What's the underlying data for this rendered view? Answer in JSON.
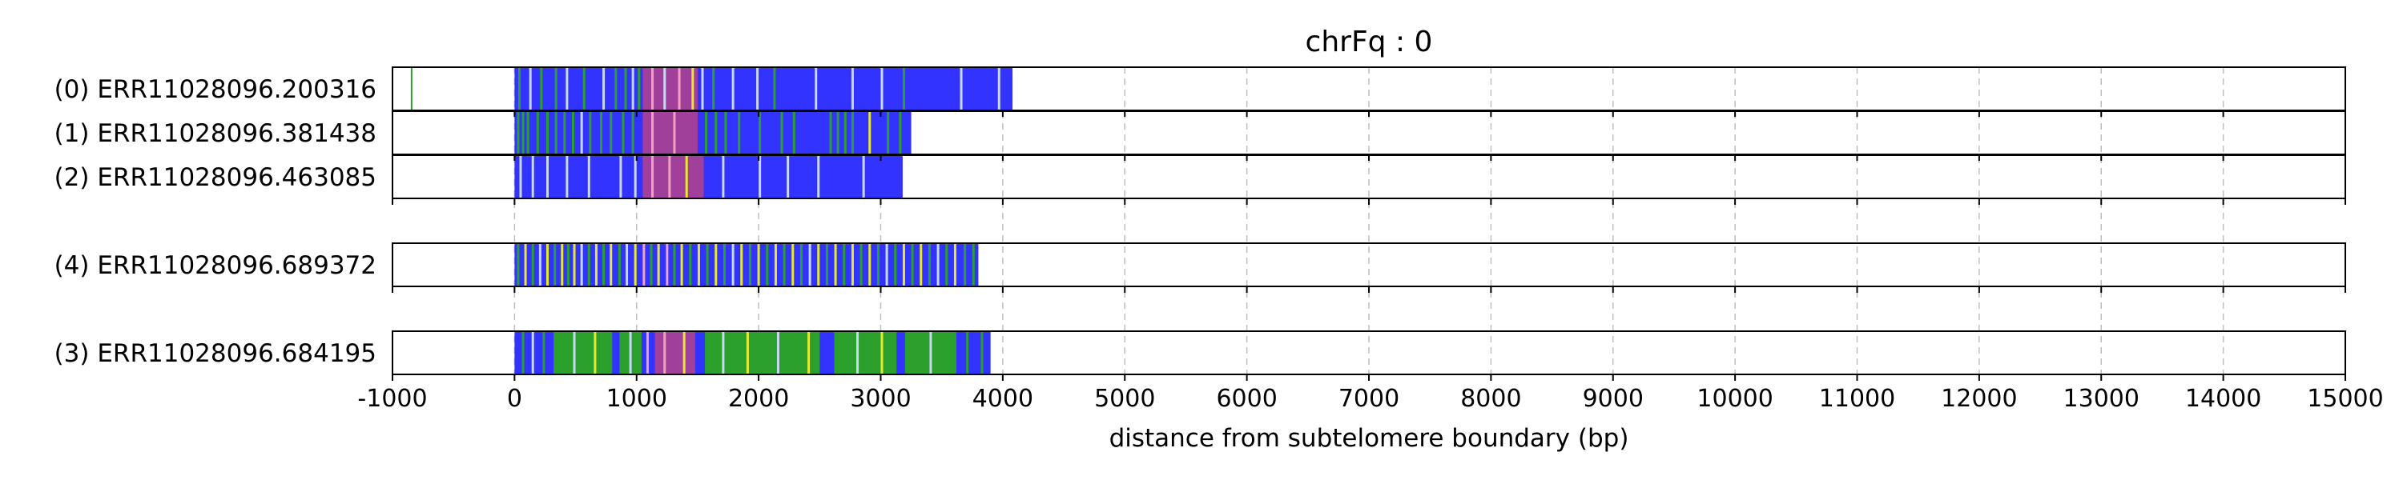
{
  "chart_data": {
    "type": "bar",
    "title": "chrFq : 0",
    "xlabel": "distance from subtelomere boundary (bp)",
    "ylabel": "",
    "xlim": [
      -1000,
      15000
    ],
    "x_ticks": [
      -1000,
      0,
      1000,
      2000,
      3000,
      4000,
      5000,
      6000,
      7000,
      8000,
      9000,
      10000,
      11000,
      12000,
      13000,
      14000,
      15000
    ],
    "x_tick_labels": [
      "-1000",
      "0",
      "1000",
      "2000",
      "3000",
      "4000",
      "5000",
      "6000",
      "7000",
      "8000",
      "9000",
      "10000",
      "11000",
      "12000",
      "13000",
      "14000",
      "15000"
    ],
    "grid": "vertical dashed at x ticks",
    "legend": "none",
    "colors": {
      "blue": "#3333ff",
      "green": "#2ca02c",
      "magenta": "#a0409a",
      "yellow": "#e8e830",
      "pink": "#f0a0c0",
      "light": "#c8d8f0"
    },
    "tracks": [
      {
        "label": "(0) ERR11028096.200316",
        "start": 0,
        "end": 4080,
        "extra_marks": [
          {
            "x": -850,
            "color": "green"
          }
        ],
        "dominant": "blue",
        "segments": [
          {
            "from": 1050,
            "to": 1500,
            "color": "magenta"
          }
        ],
        "stripes": [
          {
            "x": 30,
            "color": "green"
          },
          {
            "x": 120,
            "color": "light"
          },
          {
            "x": 210,
            "color": "green"
          },
          {
            "x": 330,
            "color": "green"
          },
          {
            "x": 420,
            "color": "light"
          },
          {
            "x": 560,
            "color": "green"
          },
          {
            "x": 720,
            "color": "light"
          },
          {
            "x": 820,
            "color": "green"
          },
          {
            "x": 900,
            "color": "green"
          },
          {
            "x": 960,
            "color": "light"
          },
          {
            "x": 1010,
            "color": "green"
          },
          {
            "x": 1120,
            "color": "pink"
          },
          {
            "x": 1220,
            "color": "light"
          },
          {
            "x": 1340,
            "color": "pink"
          },
          {
            "x": 1450,
            "color": "yellow"
          },
          {
            "x": 1530,
            "color": "light"
          },
          {
            "x": 1620,
            "color": "green"
          },
          {
            "x": 1780,
            "color": "light"
          },
          {
            "x": 1980,
            "color": "light"
          },
          {
            "x": 2120,
            "color": "green"
          },
          {
            "x": 2460,
            "color": "light"
          },
          {
            "x": 2760,
            "color": "light"
          },
          {
            "x": 3000,
            "color": "light"
          },
          {
            "x": 3180,
            "color": "green"
          },
          {
            "x": 3650,
            "color": "light"
          },
          {
            "x": 3960,
            "color": "light"
          }
        ]
      },
      {
        "label": "(1) ERR11028096.381438",
        "start": 0,
        "end": 3250,
        "extra_marks": [],
        "dominant": "blue",
        "segments": [
          {
            "from": 1050,
            "to": 1500,
            "color": "magenta"
          }
        ],
        "stripes": [
          {
            "x": 20,
            "color": "green"
          },
          {
            "x": 60,
            "color": "green"
          },
          {
            "x": 100,
            "color": "green"
          },
          {
            "x": 180,
            "color": "green"
          },
          {
            "x": 260,
            "color": "green"
          },
          {
            "x": 330,
            "color": "green"
          },
          {
            "x": 400,
            "color": "green"
          },
          {
            "x": 470,
            "color": "green"
          },
          {
            "x": 540,
            "color": "light"
          },
          {
            "x": 610,
            "color": "green"
          },
          {
            "x": 700,
            "color": "green"
          },
          {
            "x": 780,
            "color": "green"
          },
          {
            "x": 880,
            "color": "green"
          },
          {
            "x": 960,
            "color": "green"
          },
          {
            "x": 1120,
            "color": "pink"
          },
          {
            "x": 1300,
            "color": "pink"
          },
          {
            "x": 1560,
            "color": "green"
          },
          {
            "x": 1640,
            "color": "green"
          },
          {
            "x": 1720,
            "color": "green"
          },
          {
            "x": 1830,
            "color": "green"
          },
          {
            "x": 2000,
            "color": "green"
          },
          {
            "x": 2180,
            "color": "green"
          },
          {
            "x": 2280,
            "color": "green"
          },
          {
            "x": 2580,
            "color": "green"
          },
          {
            "x": 2640,
            "color": "green"
          },
          {
            "x": 2700,
            "color": "green"
          },
          {
            "x": 2760,
            "color": "green"
          },
          {
            "x": 2900,
            "color": "yellow"
          },
          {
            "x": 3050,
            "color": "green"
          },
          {
            "x": 3150,
            "color": "green"
          }
        ]
      },
      {
        "label": "(2) ERR11028096.463085",
        "start": 0,
        "end": 3180,
        "extra_marks": [],
        "dominant": "blue",
        "segments": [
          {
            "from": 1050,
            "to": 1550,
            "color": "magenta"
          }
        ],
        "stripes": [
          {
            "x": 40,
            "color": "light"
          },
          {
            "x": 140,
            "color": "light"
          },
          {
            "x": 260,
            "color": "light"
          },
          {
            "x": 420,
            "color": "light"
          },
          {
            "x": 600,
            "color": "light"
          },
          {
            "x": 860,
            "color": "light"
          },
          {
            "x": 980,
            "color": "light"
          },
          {
            "x": 1120,
            "color": "pink"
          },
          {
            "x": 1260,
            "color": "pink"
          },
          {
            "x": 1400,
            "color": "yellow"
          },
          {
            "x": 1700,
            "color": "light"
          },
          {
            "x": 2000,
            "color": "light"
          },
          {
            "x": 2230,
            "color": "light"
          },
          {
            "x": 2480,
            "color": "light"
          },
          {
            "x": 2850,
            "color": "light"
          }
        ]
      },
      {
        "label": "(4) ERR11028096.689372",
        "start": 0,
        "end": 3800,
        "extra_marks": [],
        "dominant": "blue",
        "segments": [],
        "stripes": [
          {
            "x": 20,
            "color": "green"
          },
          {
            "x": 80,
            "color": "yellow"
          },
          {
            "x": 140,
            "color": "green"
          },
          {
            "x": 200,
            "color": "light"
          },
          {
            "x": 260,
            "color": "yellow"
          },
          {
            "x": 320,
            "color": "green"
          },
          {
            "x": 380,
            "color": "yellow"
          },
          {
            "x": 430,
            "color": "green"
          },
          {
            "x": 480,
            "color": "yellow"
          },
          {
            "x": 540,
            "color": "light"
          },
          {
            "x": 600,
            "color": "green"
          },
          {
            "x": 660,
            "color": "yellow"
          },
          {
            "x": 720,
            "color": "green"
          },
          {
            "x": 780,
            "color": "yellow"
          },
          {
            "x": 850,
            "color": "green"
          },
          {
            "x": 910,
            "color": "light"
          },
          {
            "x": 980,
            "color": "yellow"
          },
          {
            "x": 1050,
            "color": "pink"
          },
          {
            "x": 1110,
            "color": "green"
          },
          {
            "x": 1170,
            "color": "yellow"
          },
          {
            "x": 1240,
            "color": "pink"
          },
          {
            "x": 1300,
            "color": "green"
          },
          {
            "x": 1360,
            "color": "yellow"
          },
          {
            "x": 1430,
            "color": "green"
          },
          {
            "x": 1500,
            "color": "yellow"
          },
          {
            "x": 1570,
            "color": "green"
          },
          {
            "x": 1640,
            "color": "yellow"
          },
          {
            "x": 1710,
            "color": "green"
          },
          {
            "x": 1780,
            "color": "light"
          },
          {
            "x": 1850,
            "color": "yellow"
          },
          {
            "x": 1920,
            "color": "green"
          },
          {
            "x": 1990,
            "color": "yellow"
          },
          {
            "x": 2060,
            "color": "green"
          },
          {
            "x": 2130,
            "color": "yellow"
          },
          {
            "x": 2200,
            "color": "green"
          },
          {
            "x": 2270,
            "color": "yellow"
          },
          {
            "x": 2340,
            "color": "green"
          },
          {
            "x": 2410,
            "color": "light"
          },
          {
            "x": 2480,
            "color": "yellow"
          },
          {
            "x": 2550,
            "color": "green"
          },
          {
            "x": 2620,
            "color": "yellow"
          },
          {
            "x": 2690,
            "color": "green"
          },
          {
            "x": 2760,
            "color": "yellow"
          },
          {
            "x": 2830,
            "color": "green"
          },
          {
            "x": 2900,
            "color": "yellow"
          },
          {
            "x": 2970,
            "color": "green"
          },
          {
            "x": 3040,
            "color": "light"
          },
          {
            "x": 3110,
            "color": "green"
          },
          {
            "x": 3180,
            "color": "yellow"
          },
          {
            "x": 3250,
            "color": "green"
          },
          {
            "x": 3320,
            "color": "yellow"
          },
          {
            "x": 3390,
            "color": "green"
          },
          {
            "x": 3460,
            "color": "light"
          },
          {
            "x": 3530,
            "color": "green"
          },
          {
            "x": 3600,
            "color": "yellow"
          },
          {
            "x": 3680,
            "color": "green"
          },
          {
            "x": 3750,
            "color": "green"
          }
        ]
      },
      {
        "label": "(3) ERR11028096.684195",
        "start": 0,
        "end": 3900,
        "extra_marks": [],
        "dominant": "blue",
        "segments": [
          {
            "from": 320,
            "to": 800,
            "color": "green"
          },
          {
            "from": 860,
            "to": 1040,
            "color": "green"
          },
          {
            "from": 1150,
            "to": 1480,
            "color": "magenta"
          },
          {
            "from": 1560,
            "to": 2500,
            "color": "green"
          },
          {
            "from": 2620,
            "to": 3130,
            "color": "green"
          },
          {
            "from": 3200,
            "to": 3620,
            "color": "green"
          }
        ],
        "stripes": [
          {
            "x": 60,
            "color": "green"
          },
          {
            "x": 140,
            "color": "light"
          },
          {
            "x": 230,
            "color": "green"
          },
          {
            "x": 480,
            "color": "light"
          },
          {
            "x": 650,
            "color": "yellow"
          },
          {
            "x": 940,
            "color": "light"
          },
          {
            "x": 1080,
            "color": "pink"
          },
          {
            "x": 1220,
            "color": "pink"
          },
          {
            "x": 1380,
            "color": "yellow"
          },
          {
            "x": 1700,
            "color": "light"
          },
          {
            "x": 1900,
            "color": "yellow"
          },
          {
            "x": 2150,
            "color": "light"
          },
          {
            "x": 2400,
            "color": "yellow"
          },
          {
            "x": 2800,
            "color": "light"
          },
          {
            "x": 3000,
            "color": "yellow"
          },
          {
            "x": 3400,
            "color": "light"
          },
          {
            "x": 3700,
            "color": "green"
          },
          {
            "x": 3820,
            "color": "green"
          }
        ]
      }
    ]
  }
}
